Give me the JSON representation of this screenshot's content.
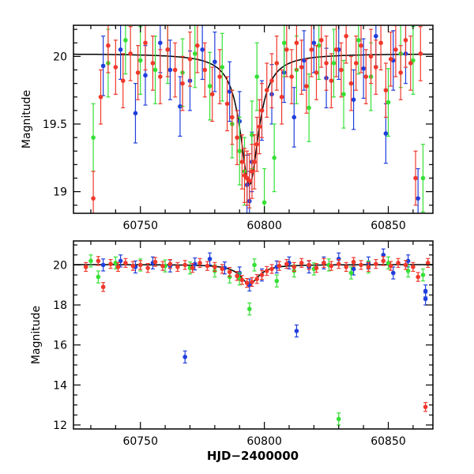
{
  "chart_data": [
    {
      "type": "scatter",
      "panel": "top",
      "ylabel": "Magnitude",
      "xlabel": "",
      "xlim": [
        60723,
        60868
      ],
      "ylim": [
        20.23,
        18.84
      ],
      "y_inverted": true,
      "x_ticks": [
        60750,
        60800,
        60850
      ],
      "x_tick_labels": [
        "60750",
        "60800",
        "60850"
      ],
      "y_ticks": [
        19,
        19.5,
        20
      ],
      "y_tick_labels": [
        "19",
        "19.5",
        "20"
      ],
      "model_curve": {
        "peak_x": 60794,
        "peak_y": 19.05,
        "base_y": 20.02,
        "width": 4.5
      },
      "colors": {
        "series_1": "#1f3fdc",
        "series_2": "#35e035",
        "series_3": "#f0382b",
        "model": "#000000"
      },
      "series": [
        {
          "points": [
            [
              60735,
              19.93
            ],
            [
              60742,
              20.05
            ],
            [
              60748,
              19.58
            ],
            [
              60752,
              19.86
            ],
            [
              60758,
              20.1
            ],
            [
              60762,
              19.9
            ],
            [
              60766,
              19.63
            ],
            [
              60770,
              19.82
            ],
            [
              60775,
              20.05
            ],
            [
              60780,
              19.96
            ],
            [
              60786,
              19.74
            ],
            [
              60790,
              19.52
            ],
            [
              60793,
              19.05
            ],
            [
              60794,
              18.93
            ],
            [
              60795,
              19.22
            ],
            [
              60799,
              19.6
            ],
            [
              60803,
              19.72
            ],
            [
              60808,
              19.88
            ],
            [
              60812,
              19.55
            ],
            [
              60816,
              19.97
            ],
            [
              60820,
              20.1
            ],
            [
              60825,
              19.84
            ],
            [
              60830,
              20.05
            ],
            [
              60836,
              19.68
            ],
            [
              60840,
              19.91
            ],
            [
              60845,
              20.15
            ],
            [
              60849,
              19.43
            ],
            [
              60852,
              19.97
            ],
            [
              60857,
              20.02
            ],
            [
              60862,
              18.95
            ]
          ],
          "err": 0.22
        },
        {
          "points": [
            [
              60731,
              19.4
            ],
            [
              60737,
              19.95
            ],
            [
              60744,
              20.12
            ],
            [
              60750,
              19.97
            ],
            [
              60756,
              19.9
            ],
            [
              60761,
              20.05
            ],
            [
              60767,
              19.88
            ],
            [
              60772,
              20.02
            ],
            [
              60778,
              19.78
            ],
            [
              60783,
              19.92
            ],
            [
              60787,
              19.5
            ],
            [
              60790,
              19.3
            ],
            [
              60792,
              19.15
            ],
            [
              60795,
              19.42
            ],
            [
              60797,
              19.85
            ],
            [
              60800,
              18.92
            ],
            [
              60804,
              19.25
            ],
            [
              60808,
              20.1
            ],
            [
              60813,
              19.9
            ],
            [
              60818,
              19.62
            ],
            [
              60822,
              20.08
            ],
            [
              60828,
              19.95
            ],
            [
              60832,
              19.72
            ],
            [
              60838,
              20.12
            ],
            [
              60843,
              19.85
            ],
            [
              60850,
              19.66
            ],
            [
              60855,
              20.02
            ],
            [
              60860,
              19.97
            ],
            [
              60864,
              19.1
            ]
          ],
          "err": 0.25
        },
        {
          "points": [
            [
              60731,
              18.95
            ],
            [
              60734,
              19.7
            ],
            [
              60737,
              20.08
            ],
            [
              60740,
              19.92
            ],
            [
              60743,
              19.82
            ],
            [
              60746,
              20.02
            ],
            [
              60749,
              19.88
            ],
            [
              60752,
              20.1
            ],
            [
              60755,
              19.95
            ],
            [
              60758,
              19.85
            ],
            [
              60761,
              20.05
            ],
            [
              60764,
              19.9
            ],
            [
              60767,
              19.8
            ],
            [
              60770,
              19.98
            ],
            [
              60773,
              20.08
            ],
            [
              60776,
              19.9
            ],
            [
              60779,
              19.72
            ],
            [
              60782,
              19.85
            ],
            [
              60785,
              19.65
            ],
            [
              60787,
              19.55
            ],
            [
              60789,
              19.4
            ],
            [
              60791,
              19.22
            ],
            [
              60792,
              19.12
            ],
            [
              60793,
              19.1
            ],
            [
              60794,
              19.08
            ],
            [
              60795,
              19.15
            ],
            [
              60796,
              19.22
            ],
            [
              60797,
              19.35
            ],
            [
              60798,
              19.48
            ],
            [
              60799,
              19.6
            ],
            [
              60801,
              19.75
            ],
            [
              60803,
              19.82
            ],
            [
              60805,
              19.95
            ],
            [
              60807,
              19.7
            ],
            [
              60809,
              20.05
            ],
            [
              60811,
              19.85
            ],
            [
              60813,
              20.1
            ],
            [
              60815,
              19.92
            ],
            [
              60817,
              19.78
            ],
            [
              60819,
              20.05
            ],
            [
              60821,
              19.88
            ],
            [
              60823,
              20.12
            ],
            [
              60825,
              19.95
            ],
            [
              60827,
              19.82
            ],
            [
              60829,
              20.05
            ],
            [
              60831,
              19.9
            ],
            [
              60833,
              20.15
            ],
            [
              60835,
              19.8
            ],
            [
              60837,
              19.95
            ],
            [
              60839,
              20.08
            ],
            [
              60841,
              19.85
            ],
            [
              60843,
              20.0
            ],
            [
              60845,
              19.92
            ],
            [
              60847,
              20.1
            ],
            [
              60849,
              19.75
            ],
            [
              60851,
              19.98
            ],
            [
              60853,
              20.05
            ],
            [
              60855,
              19.88
            ],
            [
              60857,
              20.12
            ],
            [
              60859,
              19.95
            ],
            [
              60861,
              19.1
            ],
            [
              60863,
              20.02
            ]
          ],
          "err": 0.2
        }
      ]
    },
    {
      "type": "scatter",
      "panel": "bottom",
      "ylabel": "Magnitude",
      "xlabel": "HJD−2400000",
      "xlim": [
        60723,
        60868
      ],
      "ylim": [
        21.2,
        11.8
      ],
      "y_inverted": true,
      "x_ticks": [
        60750,
        60800,
        60850
      ],
      "x_tick_labels": [
        "60750",
        "60800",
        "60850"
      ],
      "y_ticks": [
        12,
        14,
        16,
        18,
        20
      ],
      "y_tick_labels": [
        "12",
        "14",
        "16",
        "18",
        "20"
      ],
      "model_curve": {
        "peak_x": 60794,
        "peak_y": 19.05,
        "base_y": 20.02,
        "width": 4.5
      },
      "series": [
        {
          "points": [
            [
              60735,
              20.0
            ],
            [
              60742,
              20.2
            ],
            [
              60748,
              19.9
            ],
            [
              60755,
              20.1
            ],
            [
              60762,
              19.95
            ],
            [
              60768,
              15.4
            ],
            [
              60772,
              20.05
            ],
            [
              60778,
              20.3
            ],
            [
              60784,
              19.85
            ],
            [
              60790,
              19.6
            ],
            [
              60794,
              19.0
            ],
            [
              60799,
              19.5
            ],
            [
              60805,
              19.9
            ],
            [
              60810,
              20.1
            ],
            [
              60813,
              16.7
            ],
            [
              60818,
              19.9
            ],
            [
              60824,
              20.1
            ],
            [
              60830,
              20.3
            ],
            [
              60836,
              19.8
            ],
            [
              60842,
              20.1
            ],
            [
              60848,
              20.5
            ],
            [
              60852,
              19.6
            ],
            [
              60858,
              20.2
            ],
            [
              60865,
              18.3
            ],
            [
              60865,
              18.7
            ]
          ],
          "err": 0.3
        },
        {
          "points": [
            [
              60730,
              20.2
            ],
            [
              60733,
              19.4
            ],
            [
              60740,
              20.1
            ],
            [
              60750,
              20.0
            ],
            [
              60760,
              19.95
            ],
            [
              60770,
              19.85
            ],
            [
              60780,
              19.7
            ],
            [
              60786,
              19.4
            ],
            [
              60790,
              19.3
            ],
            [
              60794,
              17.8
            ],
            [
              60796,
              20.0
            ],
            [
              60805,
              19.2
            ],
            [
              60812,
              19.7
            ],
            [
              60820,
              19.8
            ],
            [
              60826,
              20.0
            ],
            [
              60830,
              12.3
            ],
            [
              60835,
              19.6
            ],
            [
              60842,
              19.9
            ],
            [
              60850,
              20.1
            ],
            [
              60858,
              19.7
            ],
            [
              60864,
              19.5
            ]
          ],
          "err": 0.3
        },
        {
          "points": [
            [
              60728,
              19.9
            ],
            [
              60733,
              20.2
            ],
            [
              60735,
              18.9
            ],
            [
              60738,
              20.05
            ],
            [
              60741,
              19.9
            ],
            [
              60744,
              20.1
            ],
            [
              60747,
              19.95
            ],
            [
              60750,
              20.0
            ],
            [
              60753,
              19.85
            ],
            [
              60756,
              20.15
            ],
            [
              60759,
              19.95
            ],
            [
              60762,
              20.05
            ],
            [
              60765,
              19.9
            ],
            [
              60768,
              20.0
            ],
            [
              60771,
              19.85
            ],
            [
              60774,
              20.1
            ],
            [
              60777,
              19.95
            ],
            [
              60780,
              19.9
            ],
            [
              60783,
              19.8
            ],
            [
              60786,
              19.65
            ],
            [
              60789,
              19.45
            ],
            [
              60791,
              19.25
            ],
            [
              60793,
              19.1
            ],
            [
              60795,
              19.15
            ],
            [
              60797,
              19.3
            ],
            [
              60799,
              19.5
            ],
            [
              60801,
              19.7
            ],
            [
              60803,
              19.8
            ],
            [
              60806,
              19.95
            ],
            [
              60809,
              20.05
            ],
            [
              60812,
              19.9
            ],
            [
              60815,
              20.1
            ],
            [
              60818,
              20.0
            ],
            [
              60821,
              19.85
            ],
            [
              60824,
              20.1
            ],
            [
              60827,
              19.95
            ],
            [
              60830,
              20.05
            ],
            [
              60833,
              19.9
            ],
            [
              60836,
              20.15
            ],
            [
              60839,
              20.0
            ],
            [
              60842,
              19.9
            ],
            [
              60845,
              20.05
            ],
            [
              60848,
              20.2
            ],
            [
              60851,
              19.95
            ],
            [
              60854,
              20.1
            ],
            [
              60857,
              20.0
            ],
            [
              60860,
              19.9
            ],
            [
              60862,
              19.4
            ],
            [
              60865,
              12.9
            ],
            [
              60866,
              20.1
            ]
          ],
          "err": 0.22
        }
      ]
    }
  ]
}
